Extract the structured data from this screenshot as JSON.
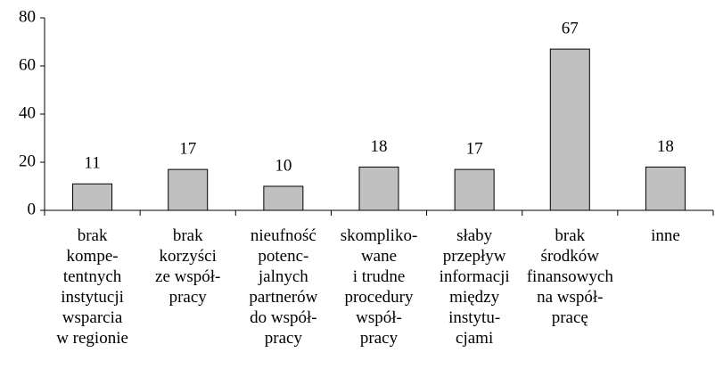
{
  "chart_data": {
    "type": "bar",
    "categories": [
      [
        "brak",
        "kompe-",
        "tentnych",
        "instytucji",
        "wsparcia",
        "w regionie"
      ],
      [
        "brak",
        "korzyści",
        "ze współ-",
        "pracy"
      ],
      [
        "nieufność",
        "potenc-",
        "jalnych",
        "partnerów",
        "do współ-",
        "pracy"
      ],
      [
        "skompliko-",
        "wane",
        "i trudne",
        "procedury",
        "współ-",
        "pracy"
      ],
      [
        "słaby",
        "przepływ",
        "informacji",
        "między",
        "instytu-",
        "cjami"
      ],
      [
        "brak",
        "środków",
        "finansowych",
        "na współ-",
        "pracę"
      ],
      [
        "inne"
      ]
    ],
    "values": [
      11,
      17,
      10,
      18,
      17,
      67,
      18
    ],
    "color": "#c0c0c0",
    "ylim": [
      0,
      80
    ],
    "yticks": [
      0,
      20,
      40,
      60,
      80
    ],
    "grid": false
  }
}
